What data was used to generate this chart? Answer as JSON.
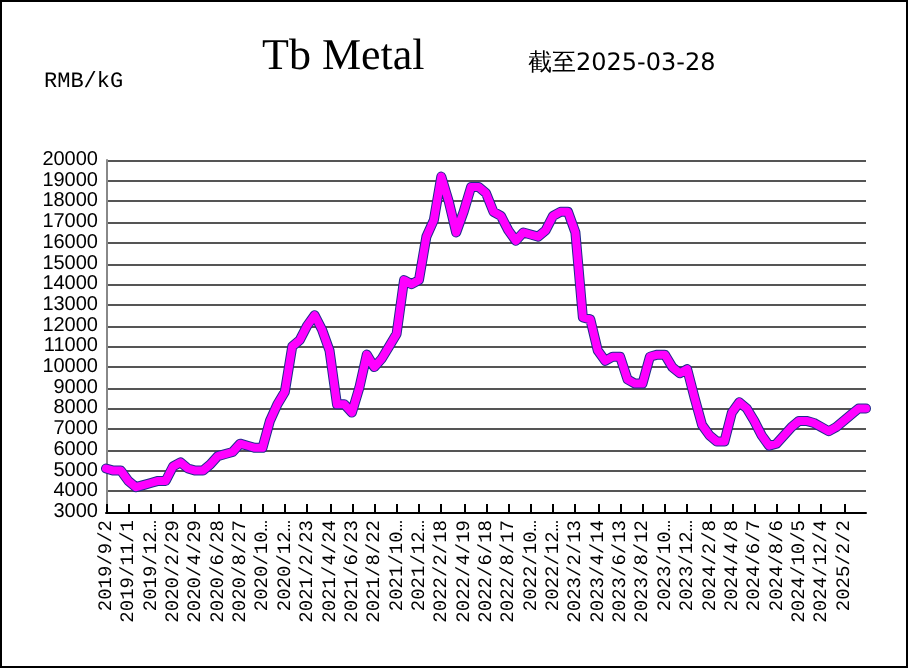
{
  "chart_data": {
    "type": "line",
    "title": "Tb Metal",
    "subtitle": "截至2025-03-28",
    "ylabel": "RMB/kG",
    "categories": [
      "2019/9/2",
      null,
      null,
      "2019/11/1",
      null,
      null,
      "2019/12…",
      null,
      null,
      "2020/2/29",
      null,
      null,
      "2020/4/29",
      null,
      null,
      "2020/6/28",
      null,
      null,
      "2020/8/27",
      null,
      null,
      "2020/10…",
      null,
      null,
      "2020/12…",
      null,
      null,
      "2021/2/23",
      null,
      null,
      "2021/4/24",
      null,
      null,
      "2021/6/23",
      null,
      null,
      "2021/8/22",
      null,
      null,
      "2021/10…",
      null,
      null,
      "2021/12…",
      null,
      null,
      "2022/2/18",
      null,
      null,
      "2022/4/19",
      null,
      null,
      "2022/6/18",
      null,
      null,
      "2022/8/17",
      null,
      null,
      "2022/10…",
      null,
      null,
      "2022/12…",
      null,
      null,
      "2023/2/13",
      null,
      null,
      "2023/4/14",
      null,
      null,
      "2023/6/13",
      null,
      null,
      "2023/8/12",
      null,
      null,
      "2023/10…",
      null,
      null,
      "2023/12…",
      null,
      null,
      "2024/2/8",
      null,
      null,
      "2024/4/8",
      null,
      null,
      "2024/6/7",
      null,
      null,
      "2024/8/6",
      null,
      null,
      "2024/10/5",
      null,
      null,
      "2024/12/4",
      null,
      null,
      "2025/2/2",
      null,
      null,
      null
    ],
    "series": [
      {
        "color": "#1f2a8c",
        "values": [
          5100,
          5000,
          5000,
          4500,
          4200,
          4300,
          4400,
          4500,
          4500,
          5200,
          5400,
          5100,
          5000,
          5000,
          5300,
          5700,
          5800,
          5900,
          6300,
          6200,
          6100,
          6100,
          7400,
          8200,
          8800,
          11000,
          11300,
          12000,
          12500,
          11800,
          10800,
          8200,
          8200,
          7800,
          9000,
          10600,
          10000,
          10400,
          11000,
          11600,
          14200,
          14000,
          14200,
          16300,
          17100,
          19200,
          18000,
          16500,
          17500,
          18700,
          18700,
          18400,
          17500,
          17300,
          16600,
          16100,
          16500,
          16400,
          16300,
          16600,
          17300,
          17500,
          17500,
          16500,
          12400,
          12300,
          10800,
          10300,
          10500,
          10500,
          9400,
          9200,
          9200,
          10500,
          10600,
          10600,
          10000,
          9700,
          9900,
          8500,
          7200,
          6700,
          6400,
          6400,
          7800,
          8300,
          8000,
          7400,
          6700,
          6200,
          6300,
          6700,
          7100,
          7400,
          7400,
          7300,
          7100,
          6900,
          7100,
          7400,
          7700,
          8000,
          8000
        ]
      },
      {
        "color": "#ff00ff",
        "values": [
          5100,
          5000,
          5000,
          4500,
          4200,
          4300,
          4400,
          4500,
          4500,
          5200,
          5400,
          5100,
          5000,
          5000,
          5300,
          5700,
          5800,
          5900,
          6300,
          6200,
          6100,
          6100,
          7400,
          8200,
          8800,
          11000,
          11300,
          12000,
          12500,
          11800,
          10800,
          8200,
          8200,
          7800,
          9000,
          10600,
          10000,
          10400,
          11000,
          11600,
          14200,
          14000,
          14200,
          16300,
          17100,
          19200,
          18000,
          16500,
          17500,
          18700,
          18700,
          18400,
          17500,
          17300,
          16600,
          16100,
          16500,
          16400,
          16300,
          16600,
          17300,
          17500,
          17500,
          16500,
          12400,
          12300,
          10800,
          10300,
          10500,
          10500,
          9400,
          9200,
          9200,
          10500,
          10600,
          10600,
          10000,
          9700,
          9900,
          8500,
          7200,
          6700,
          6400,
          6400,
          7800,
          8300,
          8000,
          7400,
          6700,
          6200,
          6300,
          6700,
          7100,
          7400,
          7400,
          7300,
          7100,
          6900,
          7100,
          7400,
          7700,
          8000,
          8000
        ]
      }
    ],
    "ylim": [
      3000,
      20000
    ],
    "yticks": [
      3000,
      4000,
      5000,
      6000,
      7000,
      8000,
      9000,
      10000,
      11000,
      12000,
      13000,
      14000,
      15000,
      16000,
      17000,
      18000,
      19000,
      20000
    ],
    "grid": "y",
    "marker": "none",
    "line_style": "solid"
  }
}
